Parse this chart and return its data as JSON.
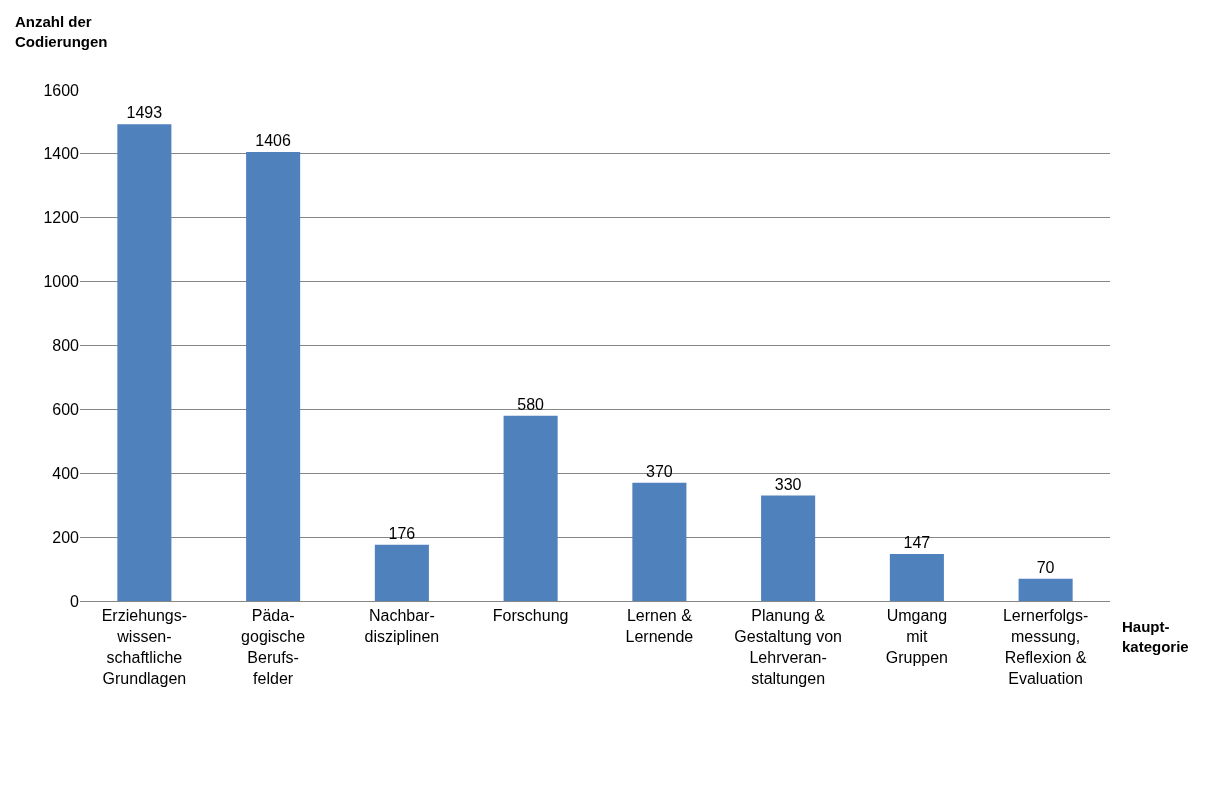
{
  "chart_data": {
    "type": "bar",
    "ylabel": "Anzahl der\nCodierungen",
    "xlabel": "Haupt-\nkategorie",
    "categories": [
      "Erziehungs-\nwissen-\nschaftliche\nGrundlagen",
      "Päda-\ngogische\nBerufs-\nfelder",
      "Nachbar-\ndisziplinen",
      "Forschung",
      "Lernen &\nLernende",
      "Planung &\nGestaltung von\nLehrveran-\nstaltungen",
      "Umgang\nmit\nGruppen",
      "Lernerfolgs-\nmessung,\nReflexion &\nEvaluation"
    ],
    "values": [
      1493,
      1406,
      176,
      580,
      370,
      330,
      147,
      70
    ],
    "color": "#4f81bd",
    "ylim": [
      0,
      1600
    ],
    "yticks": [
      0,
      200,
      400,
      600,
      800,
      1000,
      1200,
      1400,
      1600
    ],
    "grid": "y",
    "data_labels": true,
    "legend": false
  }
}
